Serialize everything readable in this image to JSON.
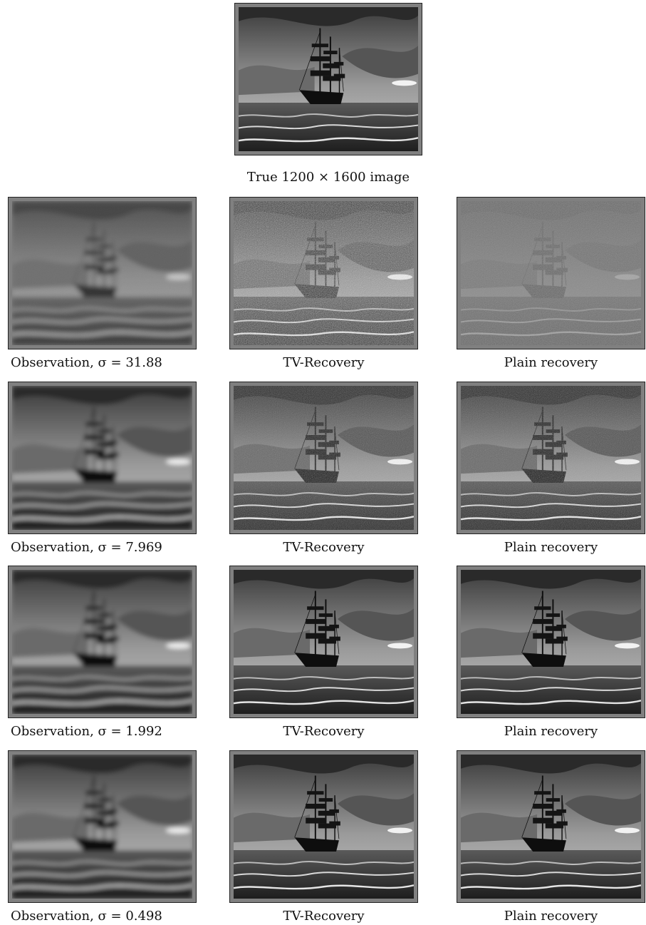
{
  "figure": {
    "top_caption": "True 1200 × 1600 image",
    "rows": [
      {
        "observation": "Observation, σ = 31.88",
        "tv": "TV-Recovery",
        "plain": "Plain recovery"
      },
      {
        "observation": "Observation, σ = 7.969",
        "tv": "TV-Recovery",
        "plain": "Plain recovery"
      },
      {
        "observation": "Observation, σ = 1.992",
        "tv": "TV-Recovery",
        "plain": "Plain recovery"
      },
      {
        "observation": "Observation, σ = 0.498",
        "tv": "TV-Recovery",
        "plain": "Plain recovery"
      }
    ]
  }
}
